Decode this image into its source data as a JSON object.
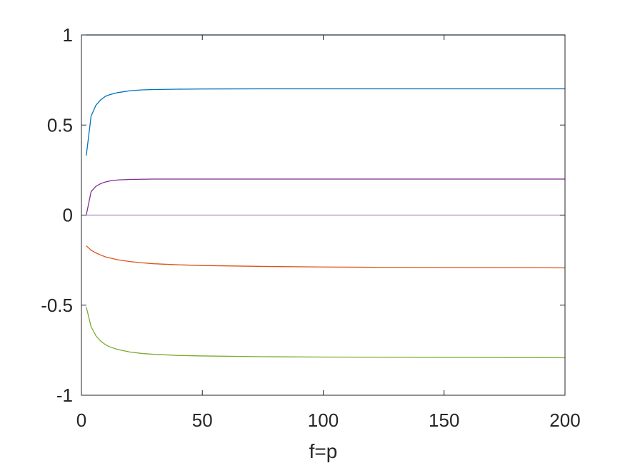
{
  "chart_data": {
    "type": "line",
    "title": "",
    "xlabel": "f=p",
    "ylabel": "",
    "xlim": [
      0,
      200
    ],
    "ylim": [
      -1,
      1
    ],
    "xticks": [
      0,
      50,
      100,
      150,
      200
    ],
    "xtick_labels": [
      "0",
      "50",
      "100",
      "150",
      "200"
    ],
    "yticks": [
      -1,
      -0.5,
      0,
      0.5,
      1
    ],
    "ytick_labels": [
      "-1",
      "-0.5",
      "0",
      "0.5",
      "1"
    ],
    "grid": false,
    "box": true,
    "series": [
      {
        "color": "#0072BD",
        "x": [
          2,
          200
        ],
        "y": [
          1,
          1
        ]
      },
      {
        "color": "#0072BD",
        "x": [
          2,
          4,
          6,
          8,
          10,
          12,
          15,
          20,
          25,
          30,
          40,
          50,
          75,
          100,
          150,
          200
        ],
        "y": [
          0.33,
          0.55,
          0.61,
          0.64,
          0.66,
          0.67,
          0.68,
          0.69,
          0.695,
          0.697,
          0.699,
          0.7,
          0.701,
          0.701,
          0.701,
          0.701
        ]
      },
      {
        "color": "#7E2F8E",
        "x": [
          2,
          4,
          6,
          8,
          10,
          12,
          15,
          20,
          25,
          30,
          40,
          50,
          75,
          100,
          150,
          200
        ],
        "y": [
          0.0,
          0.13,
          0.16,
          0.175,
          0.184,
          0.19,
          0.195,
          0.198,
          0.199,
          0.2,
          0.2,
          0.2,
          0.2,
          0.2,
          0.2,
          0.2
        ]
      },
      {
        "color": "#A58AC2",
        "x": [
          2,
          200
        ],
        "y": [
          0,
          0
        ]
      },
      {
        "color": "#D95319",
        "x": [
          2,
          4,
          6,
          8,
          10,
          15,
          20,
          25,
          30,
          40,
          50,
          75,
          100,
          125,
          150,
          175,
          200
        ],
        "y": [
          -0.17,
          -0.195,
          -0.21,
          -0.222,
          -0.232,
          -0.248,
          -0.258,
          -0.265,
          -0.27,
          -0.276,
          -0.28,
          -0.285,
          -0.288,
          -0.29,
          -0.291,
          -0.292,
          -0.293
        ]
      },
      {
        "color": "#77AC30",
        "x": [
          2,
          4,
          6,
          8,
          10,
          12,
          15,
          20,
          25,
          30,
          40,
          50,
          75,
          100,
          125,
          150,
          175,
          200
        ],
        "y": [
          -0.51,
          -0.62,
          -0.67,
          -0.7,
          -0.72,
          -0.733,
          -0.746,
          -0.76,
          -0.768,
          -0.773,
          -0.779,
          -0.782,
          -0.786,
          -0.788,
          -0.789,
          -0.79,
          -0.791,
          -0.792
        ]
      }
    ]
  }
}
